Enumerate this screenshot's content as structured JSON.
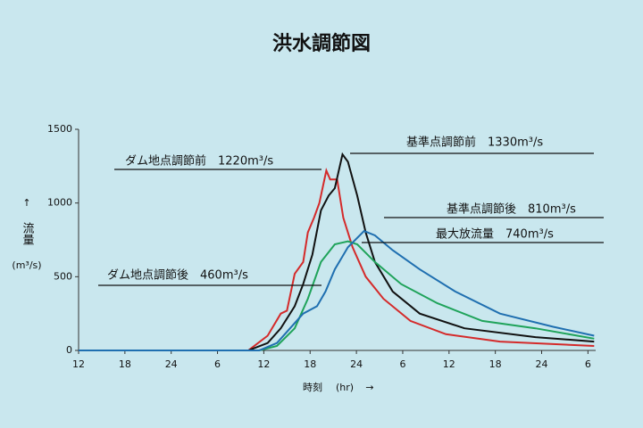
{
  "chart_data": {
    "type": "line",
    "title": "洪水調節図",
    "y_label": "流量",
    "y_unit": "(m³/s)",
    "x_label": "時刻",
    "x_unit": "(hr)",
    "xlim": [
      0,
      67
    ],
    "ylim": [
      0,
      1500
    ],
    "xticks": [
      {
        "value": 0,
        "label": "12"
      },
      {
        "value": 6,
        "label": "18"
      },
      {
        "value": 12,
        "label": "24"
      },
      {
        "value": 18,
        "label": "6"
      },
      {
        "value": 24,
        "label": "12"
      },
      {
        "value": 30,
        "label": "18"
      },
      {
        "value": 36,
        "label": "24"
      },
      {
        "value": 42,
        "label": "6"
      },
      {
        "value": 48,
        "label": "12"
      },
      {
        "value": 54,
        "label": "18"
      },
      {
        "value": 60,
        "label": "24"
      },
      {
        "value": 66,
        "label": "6"
      }
    ],
    "yticks": [
      0,
      500,
      1000,
      1500
    ],
    "series": [
      {
        "name": "ダム地点調節前",
        "color": "#d42a2a",
        "x": [
          0,
          22,
          24.5,
          26.2,
          27,
          28,
          29.1,
          29.7,
          30.5,
          31.2,
          32.1,
          32.6,
          33.5,
          34.3,
          35.5,
          37.2,
          39.5,
          43,
          47.6,
          54.6,
          66.8
        ],
        "values": [
          0,
          0,
          100,
          250,
          270,
          520,
          600,
          800,
          900,
          1000,
          1220,
          1160,
          1160,
          900,
          700,
          500,
          350,
          200,
          110,
          60,
          30
        ]
      },
      {
        "name": "基準点調節前",
        "color": "#111111",
        "x": [
          0,
          22,
          24.5,
          26.2,
          28,
          29.1,
          30.3,
          31.4,
          32.4,
          33.2,
          34.2,
          34.9,
          36.1,
          37.2,
          38.4,
          40.7,
          44.2,
          50,
          59.2,
          66.8
        ],
        "values": [
          0,
          0,
          50,
          150,
          300,
          450,
          650,
          950,
          1050,
          1100,
          1330,
          1280,
          1050,
          800,
          600,
          400,
          250,
          150,
          90,
          60
        ]
      },
      {
        "name": "最大放流量",
        "color": "#1fa35a",
        "x": [
          0,
          23.4,
          25.7,
          28,
          29.7,
          31.4,
          33.2,
          34.9,
          36.1,
          38.4,
          41.8,
          46.5,
          52.3,
          59.2,
          66.8
        ],
        "values": [
          0,
          0,
          30,
          150,
          350,
          600,
          720,
          740,
          720,
          600,
          450,
          320,
          200,
          150,
          80
        ]
      },
      {
        "name": "基準点調節後",
        "color": "#1f6fb0",
        "x": [
          0,
          23.4,
          25.7,
          27.4,
          29.1,
          30.9,
          32,
          33.2,
          34.9,
          37,
          38.4,
          40.7,
          44.2,
          48.8,
          54.6,
          61.5,
          66.8
        ],
        "values": [
          0,
          0,
          50,
          150,
          250,
          300,
          400,
          550,
          700,
          810,
          780,
          680,
          550,
          400,
          250,
          160,
          100
        ]
      }
    ],
    "annotations": [
      "ダム地点調節前　1220m³/s",
      "基準点調節前　1330m³/s",
      "基準点調節後　810m³/s",
      "最大放流量　740m³/s",
      "ダム地点調節後　460m³/s"
    ]
  }
}
